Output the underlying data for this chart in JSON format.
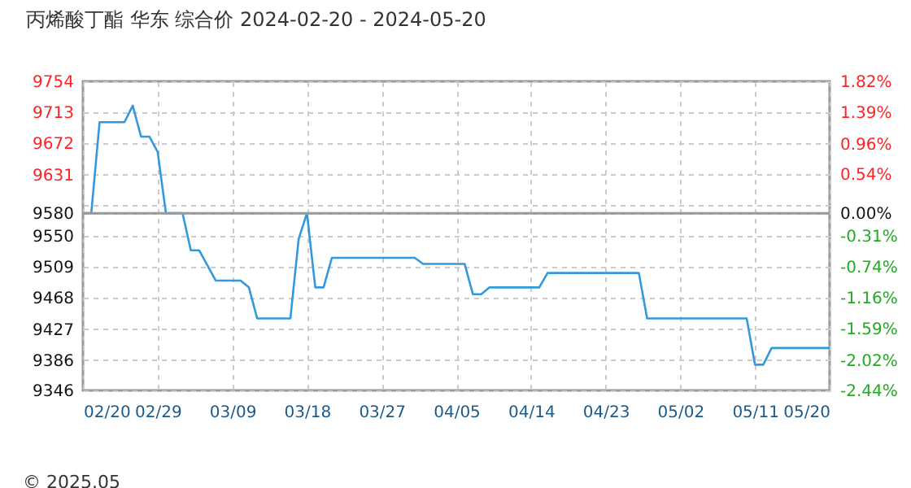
{
  "chart_data": {
    "type": "line",
    "title": "丙烯酸丁酯 华东 综合价 2024-02-20 - 2024-05-20",
    "x": [
      "2024-02-20",
      "2024-02-21",
      "2024-02-22",
      "2024-02-25",
      "2024-02-26",
      "2024-02-27",
      "2024-02-28",
      "2024-02-29",
      "2024-03-01",
      "2024-03-03",
      "2024-03-04",
      "2024-03-05",
      "2024-03-07",
      "2024-03-10",
      "2024-03-11",
      "2024-03-12",
      "2024-03-16",
      "2024-03-17",
      "2024-03-18",
      "2024-03-19",
      "2024-03-20",
      "2024-03-21",
      "2024-03-31",
      "2024-04-01",
      "2024-04-06",
      "2024-04-07",
      "2024-04-08",
      "2024-04-09",
      "2024-04-15",
      "2024-04-16",
      "2024-04-27",
      "2024-04-28",
      "2024-05-10",
      "2024-05-11",
      "2024-05-12",
      "2024-05-13",
      "2024-05-20"
    ],
    "series": [
      {
        "color": "#3399dd",
        "values": [
          9580,
          9580,
          9700,
          9700,
          9722,
          9681,
          9681,
          9661,
          9580,
          9580,
          9531,
          9531,
          9491,
          9491,
          9482,
          9441,
          9441,
          9546,
          9580,
          9482,
          9482,
          9521,
          9521,
          9513,
          9513,
          9473,
          9473,
          9482,
          9482,
          9501,
          9501,
          9441,
          9441,
          9380,
          9380,
          9402,
          9402
        ]
      }
    ],
    "xlim": [
      "2024-02-20",
      "2024-05-20"
    ],
    "xticks": [
      {
        "value": "2024-02-20",
        "label": "02/20"
      },
      {
        "value": "2024-02-29",
        "label": "02/29"
      },
      {
        "value": "2024-03-09",
        "label": "03/09"
      },
      {
        "value": "2024-03-18",
        "label": "03/18"
      },
      {
        "value": "2024-03-27",
        "label": "03/27"
      },
      {
        "value": "2024-04-05",
        "label": "04/05"
      },
      {
        "value": "2024-04-14",
        "label": "04/14"
      },
      {
        "value": "2024-04-23",
        "label": "04/23"
      },
      {
        "value": "2024-05-02",
        "label": "05/02"
      },
      {
        "value": "2024-05-11",
        "label": "05/11"
      },
      {
        "value": "2024-05-20",
        "label": "05/20"
      }
    ],
    "ylim": [
      9346,
      9754
    ],
    "yticks": [
      9346,
      9386,
      9427,
      9468,
      9509,
      9550,
      9580,
      {
        "value": 9591,
        "label": null
      },
      9631,
      9672,
      9713,
      9754
    ],
    "y2lim": [
      -2.44,
      1.82
    ],
    "y2ticks": [
      {
        "value": 1.82,
        "label": "1.82%"
      },
      {
        "value": 1.39,
        "label": "1.39%"
      },
      {
        "value": 0.96,
        "label": "0.96%"
      },
      {
        "value": 0.54,
        "label": "0.54%"
      },
      {
        "value": 0,
        "label": "0.00%"
      },
      {
        "value": -0.31,
        "label": "-0.31%"
      },
      {
        "value": -0.74,
        "label": "-0.74%"
      },
      {
        "value": -1.16,
        "label": "-1.16%"
      },
      {
        "value": -1.59,
        "label": "-1.59%"
      },
      {
        "value": -2.02,
        "label": "-2.02%"
      },
      {
        "value": -2.44,
        "label": "-2.44%"
      }
    ],
    "ref_lines": [
      {
        "axis": "y2",
        "value": 0,
        "color": "#999999"
      }
    ],
    "grid": true,
    "line_style": "solid",
    "annotations": [
      "© 2025.05"
    ]
  }
}
